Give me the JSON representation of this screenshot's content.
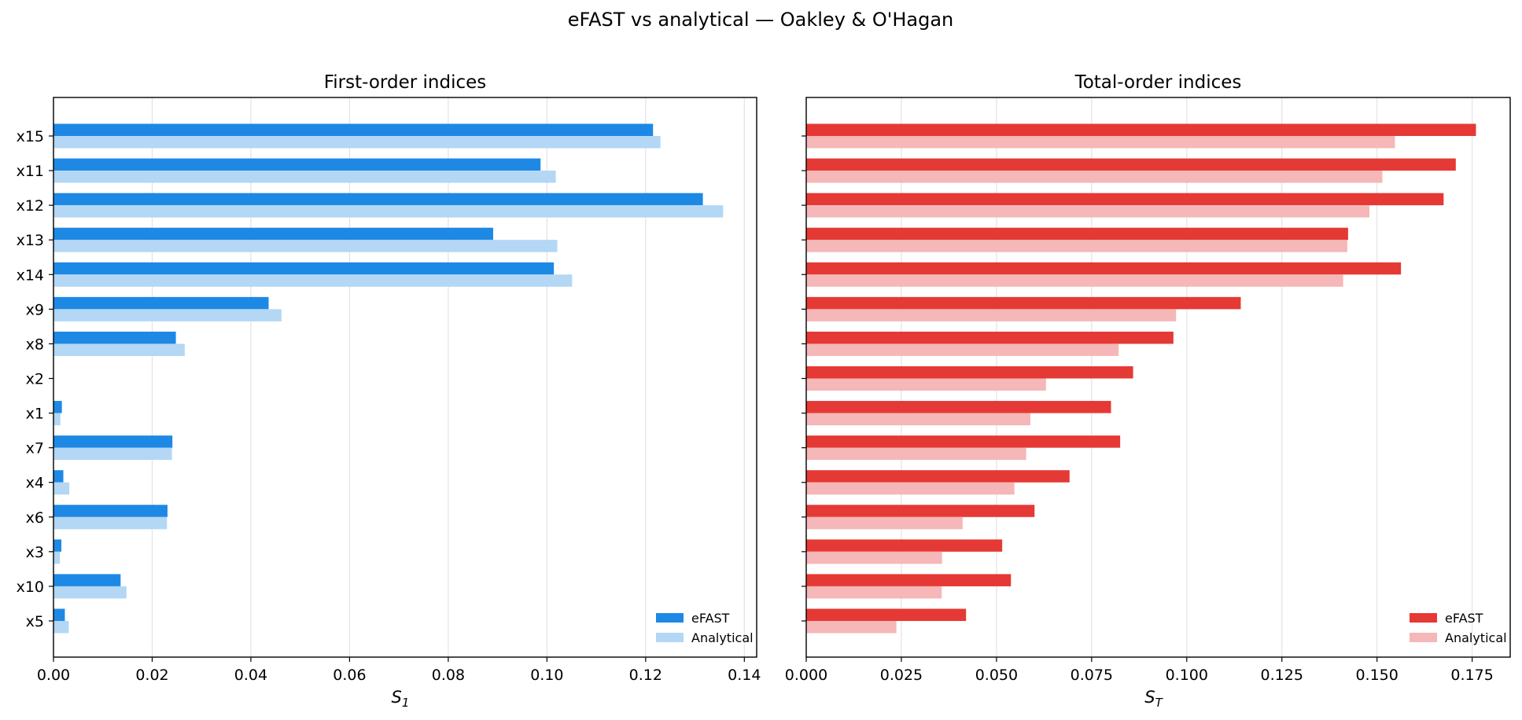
{
  "title": "eFAST vs analytical — Oakley & O'Hagan",
  "chart_data": [
    {
      "type": "bar",
      "orientation": "horizontal",
      "title": "First-order indices",
      "xlabel_main": "S",
      "xlabel_sub": "1",
      "xlim": [
        0,
        0.1425
      ],
      "xticks": [
        0.0,
        0.02,
        0.04,
        0.06,
        0.08,
        0.1,
        0.12,
        0.14
      ],
      "xtick_labels": [
        "0.00",
        "0.02",
        "0.04",
        "0.06",
        "0.08",
        "0.10",
        "0.12",
        "0.14"
      ],
      "grid": "vertical",
      "legend_position": "bottom-right",
      "categories": [
        "x15",
        "x11",
        "x12",
        "x13",
        "x14",
        "x9",
        "x8",
        "x2",
        "x1",
        "x7",
        "x4",
        "x6",
        "x3",
        "x10",
        "x5"
      ],
      "series": [
        {
          "name": "eFAST",
          "color": "#1e88e5",
          "values": [
            0.1215,
            0.0987,
            0.1316,
            0.0891,
            0.1014,
            0.0436,
            0.0248,
            0.0,
            0.0017,
            0.0241,
            0.002,
            0.0231,
            0.0016,
            0.0136,
            0.0023
          ]
        },
        {
          "name": "Analytical",
          "color": "#b3d7f5",
          "values": [
            0.123,
            0.1018,
            0.1357,
            0.1021,
            0.1051,
            0.0462,
            0.0266,
            0.0,
            0.0014,
            0.024,
            0.0032,
            0.023,
            0.0013,
            0.0148,
            0.0031
          ]
        }
      ]
    },
    {
      "type": "bar",
      "orientation": "horizontal",
      "title": "Total-order indices",
      "xlabel_main": "S",
      "xlabel_sub": "T",
      "xlim": [
        0,
        0.185
      ],
      "xticks": [
        0.0,
        0.025,
        0.05,
        0.075,
        0.1,
        0.125,
        0.15,
        0.175
      ],
      "xtick_labels": [
        "0.000",
        "0.025",
        "0.050",
        "0.075",
        "0.100",
        "0.125",
        "0.150",
        "0.175"
      ],
      "grid": "vertical",
      "legend_position": "bottom-right",
      "categories": [
        "x15",
        "x11",
        "x12",
        "x13",
        "x14",
        "x9",
        "x8",
        "x2",
        "x1",
        "x7",
        "x4",
        "x6",
        "x3",
        "x10",
        "x5"
      ],
      "series": [
        {
          "name": "eFAST",
          "color": "#e53935",
          "values": [
            0.176,
            0.1707,
            0.1675,
            0.1424,
            0.1563,
            0.1142,
            0.0965,
            0.0859,
            0.0801,
            0.0825,
            0.0692,
            0.06,
            0.0515,
            0.0538,
            0.042
          ]
        },
        {
          "name": "Analytical",
          "color": "#f5b7b7",
          "values": [
            0.1547,
            0.1514,
            0.148,
            0.1422,
            0.1411,
            0.0972,
            0.0821,
            0.063,
            0.0589,
            0.0578,
            0.0547,
            0.0411,
            0.0357,
            0.0356,
            0.0237
          ]
        }
      ]
    }
  ]
}
